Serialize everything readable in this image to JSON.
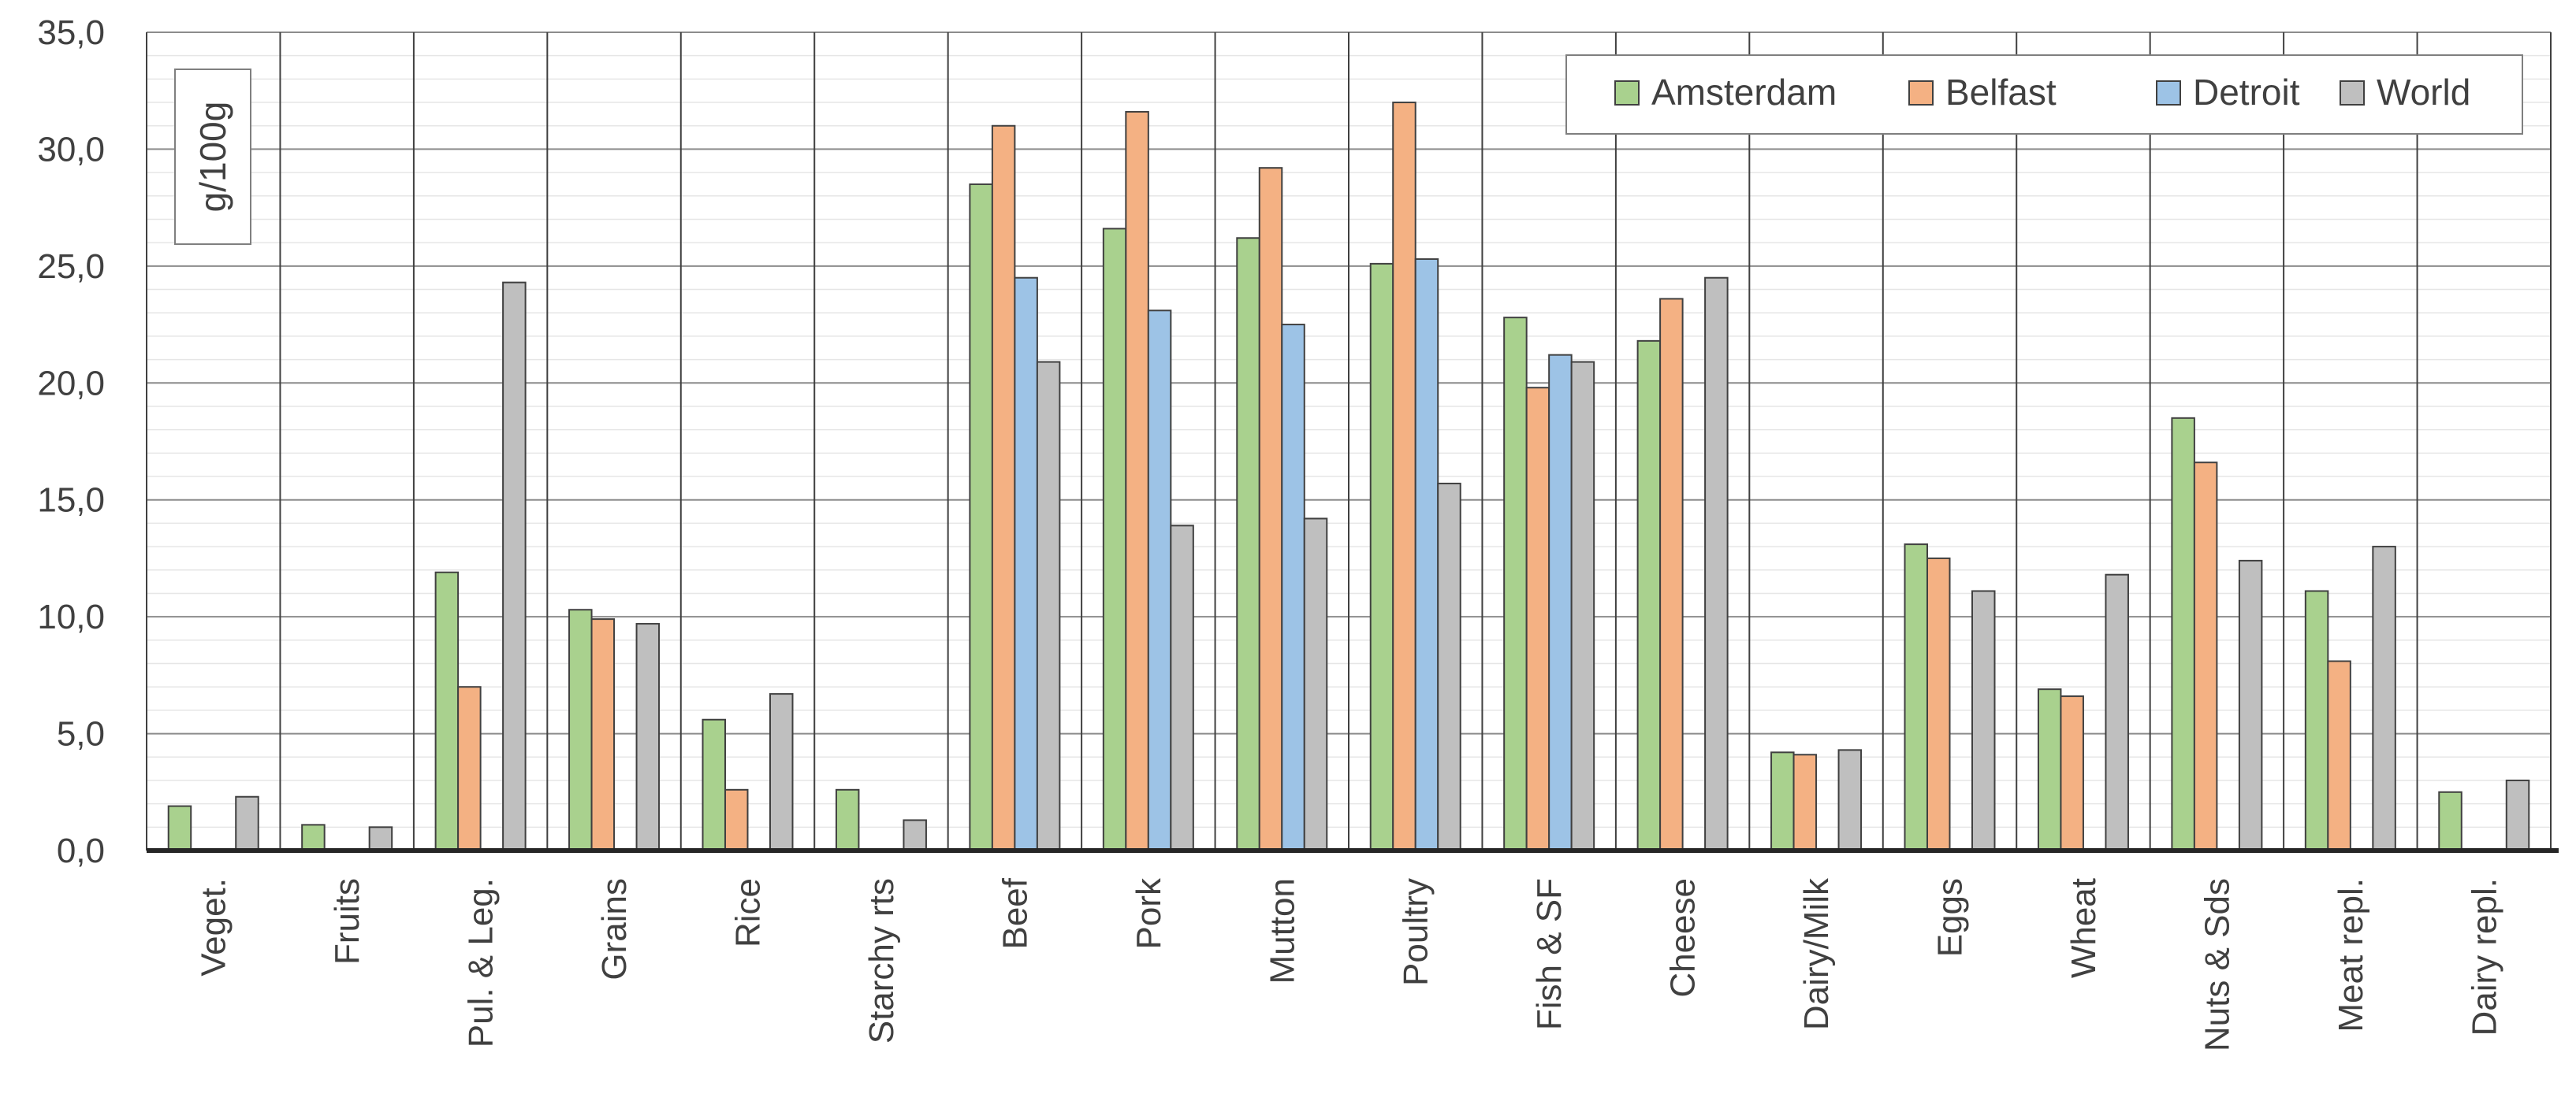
{
  "chart_data": {
    "type": "bar",
    "title": "",
    "xlabel": "",
    "ylabel": "",
    "unit_label": "g/100g",
    "ylim": [
      0,
      35
    ],
    "y_ticks": [
      "0,0",
      "5,0",
      "10,0",
      "15,0",
      "20,0",
      "25,0",
      "30,0",
      "35,0"
    ],
    "grid": "major and minor horizontal gridlines, vertical category separators",
    "legend_position": "top-right",
    "categories": [
      "Veget.",
      "Fruits",
      "Pul. & Leg.",
      "Grains",
      "Rice",
      "Starchy rts",
      "Beef",
      "Pork",
      "Mutton",
      "Poultry",
      "Fish & SF",
      "Cheese",
      "Dairy/Milk",
      "Eggs",
      "Wheat",
      "Nuts & Sds",
      "Meat repl.",
      "Dairy repl."
    ],
    "series": [
      {
        "name": "Amsterdam",
        "color": "#a9d18e",
        "values": [
          1.9,
          1.1,
          11.9,
          10.3,
          5.6,
          2.6,
          28.5,
          26.6,
          26.2,
          25.1,
          22.8,
          21.8,
          4.2,
          13.1,
          6.9,
          18.5,
          11.1,
          2.5
        ]
      },
      {
        "name": "Belfast",
        "color": "#f4b183",
        "values": [
          null,
          null,
          7.0,
          9.9,
          2.6,
          null,
          31.0,
          31.6,
          29.2,
          32.0,
          19.8,
          23.6,
          4.1,
          12.5,
          6.6,
          16.6,
          8.1,
          null
        ]
      },
      {
        "name": "Detroit",
        "color": "#9dc3e6",
        "values": [
          null,
          null,
          null,
          null,
          null,
          null,
          24.5,
          23.1,
          22.5,
          25.3,
          21.2,
          null,
          null,
          null,
          null,
          null,
          null,
          null
        ]
      },
      {
        "name": "World",
        "color": "#bfbfbf",
        "values": [
          2.3,
          1.0,
          24.3,
          9.7,
          6.7,
          1.3,
          20.9,
          13.9,
          14.2,
          15.7,
          20.9,
          24.5,
          4.3,
          11.1,
          11.8,
          12.4,
          13.0,
          3.0
        ]
      }
    ]
  }
}
